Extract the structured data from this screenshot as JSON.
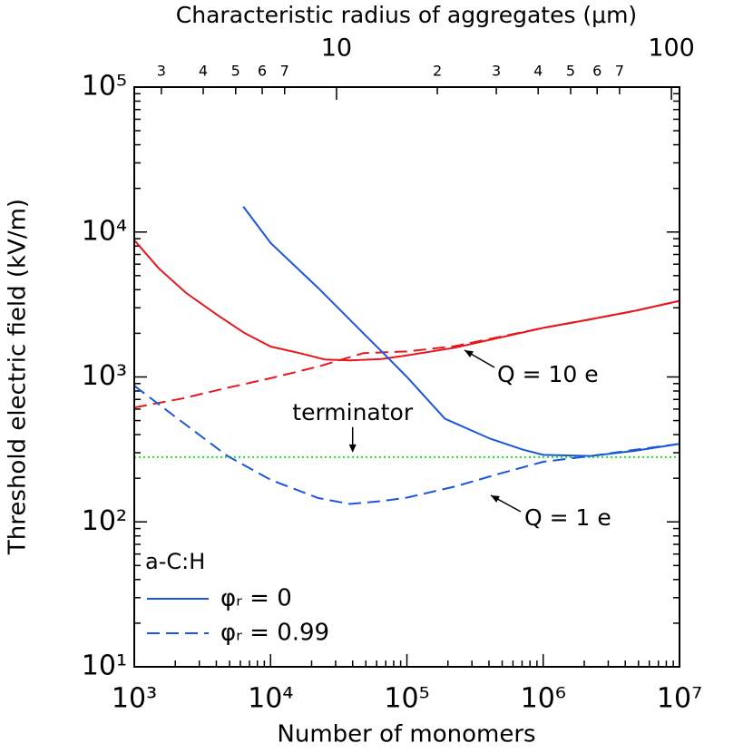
{
  "chart_data": {
    "type": "line",
    "xlabel": "Number of monomers",
    "ylabel": "Threshold electric field (kV/m)",
    "x2label": "Characteristic radius of aggregates (μm)",
    "xscale": "log",
    "yscale": "log",
    "x2scale": "log",
    "xlim": [
      1000,
      10000000
    ],
    "ylim": [
      10,
      100000
    ],
    "x2lim": [
      2.49,
      105.7
    ],
    "xticks": [
      {
        "value": 1000,
        "label": "10³"
      },
      {
        "value": 10000,
        "label": "10⁴"
      },
      {
        "value": 100000,
        "label": "10⁵"
      },
      {
        "value": 1000000,
        "label": "10⁶"
      },
      {
        "value": 10000000,
        "label": "10⁷"
      }
    ],
    "yticks": [
      {
        "value": 10,
        "label": "10¹"
      },
      {
        "value": 100,
        "label": "10²"
      },
      {
        "value": 1000,
        "label": "10³"
      },
      {
        "value": 10000,
        "label": "10⁴"
      },
      {
        "value": 100000,
        "label": "10⁵"
      }
    ],
    "x2ticks": [
      3,
      4,
      5,
      6,
      7,
      10,
      {
        "value": 20,
        "label": "2"
      },
      {
        "value": 30,
        "label": "3"
      },
      {
        "value": 40,
        "label": "4"
      },
      {
        "value": 50,
        "label": "5"
      },
      {
        "value": 60,
        "label": "6"
      },
      {
        "value": 70,
        "label": "7"
      },
      100
    ],
    "series": [
      {
        "color": "#e8161b",
        "dash": "solid",
        "x": [
          1000,
          1510,
          2400,
          4100,
          6500,
          10000,
          16300,
          25000,
          38000,
          65000,
          100000,
          224000,
          1000000,
          2240000,
          4790000,
          10000000
        ],
        "values": [
          8790,
          5620,
          3800,
          2660,
          2000,
          1620,
          1460,
          1320,
          1300,
          1330,
          1410,
          1590,
          2180,
          2500,
          2870,
          3350
        ]
      },
      {
        "color": "#e8161b",
        "dash": "dashed",
        "x": [
          1000,
          2240,
          4790,
          10000,
          22400,
          47900,
          100000,
          224000,
          1000000,
          2240000,
          4790000,
          10000000
        ],
        "values": [
          615,
          710,
          840,
          980,
          1180,
          1460,
          1500,
          1630,
          2180,
          2500,
          2870,
          3350
        ]
      },
      {
        "color": "#1a56db",
        "dash": "solid",
        "x": [
          6300,
          10000,
          22400,
          48000,
          76000,
          100000,
          190000,
          407000,
          708000,
          1000000,
          2240000,
          4790000,
          10000000
        ],
        "values": [
          15000,
          8400,
          4100,
          2000,
          1300,
          1000,
          515,
          375,
          315,
          290,
          285,
          310,
          345
        ]
      },
      {
        "color": "#1a56db",
        "dash": "dashed",
        "x": [
          1000,
          2240,
          4790,
          10000,
          22400,
          38000,
          65000,
          100000,
          224000,
          479000,
          1000000,
          2240000,
          4790000,
          10000000
        ],
        "values": [
          870,
          490,
          286,
          195,
          146,
          133,
          139,
          147,
          175,
          215,
          260,
          285,
          315,
          345
        ]
      }
    ],
    "hlines": [
      {
        "value": 280,
        "color": "#22dd22",
        "label": "terminator"
      }
    ],
    "annotations": [
      "Q = 10 e",
      "Q = 1 e"
    ],
    "legend": {
      "title": "a-C:H",
      "entries": [
        {
          "label": "φᵣ = 0",
          "dash": "solid"
        },
        {
          "label": "φᵣ = 0.99",
          "dash": "dashed"
        }
      ],
      "color": "#1a56db",
      "position": "lower left"
    }
  }
}
